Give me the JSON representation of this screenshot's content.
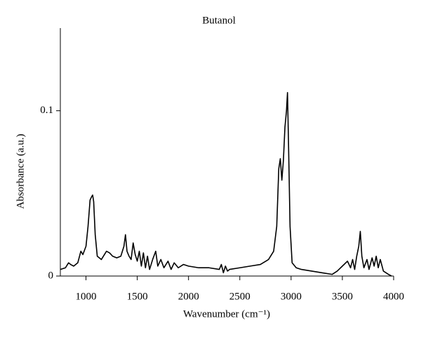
{
  "chart_data": {
    "type": "line",
    "title": "Butanol",
    "x_label": "Wavenumber (cm⁻¹)",
    "y_label": "Absorbance (a.u.)",
    "xlim": [
      750,
      4000
    ],
    "ylim": [
      0,
      0.15
    ],
    "xticks": [
      1000,
      1500,
      2000,
      2500,
      3000,
      3500,
      4000
    ],
    "yticks": [
      0,
      0.1
    ],
    "grid": false,
    "x": [
      750,
      800,
      830,
      850,
      880,
      920,
      950,
      970,
      1000,
      1020,
      1040,
      1055,
      1065,
      1075,
      1090,
      1110,
      1150,
      1200,
      1230,
      1260,
      1300,
      1340,
      1370,
      1385,
      1400,
      1420,
      1440,
      1460,
      1480,
      1500,
      1520,
      1540,
      1560,
      1580,
      1600,
      1620,
      1650,
      1680,
      1700,
      1730,
      1760,
      1800,
      1830,
      1860,
      1900,
      1950,
      2000,
      2100,
      2200,
      2300,
      2320,
      2340,
      2360,
      2380,
      2400,
      2500,
      2600,
      2700,
      2780,
      2830,
      2860,
      2880,
      2895,
      2910,
      2925,
      2940,
      2955,
      2965,
      2975,
      2990,
      3010,
      3050,
      3100,
      3200,
      3300,
      3400,
      3450,
      3500,
      3550,
      3580,
      3600,
      3620,
      3640,
      3660,
      3675,
      3690,
      3710,
      3740,
      3760,
      3790,
      3810,
      3830,
      3850,
      3870,
      3900,
      3950,
      3980
    ],
    "series": [
      {
        "color": "#000000",
        "values": [
          0.004,
          0.005,
          0.008,
          0.007,
          0.006,
          0.008,
          0.015,
          0.013,
          0.018,
          0.03,
          0.046,
          0.048,
          0.049,
          0.045,
          0.025,
          0.012,
          0.01,
          0.015,
          0.014,
          0.012,
          0.011,
          0.012,
          0.018,
          0.025,
          0.015,
          0.012,
          0.01,
          0.02,
          0.013,
          0.009,
          0.015,
          0.006,
          0.014,
          0.005,
          0.012,
          0.004,
          0.01,
          0.015,
          0.006,
          0.01,
          0.005,
          0.009,
          0.004,
          0.008,
          0.005,
          0.007,
          0.006,
          0.005,
          0.005,
          0.004,
          0.007,
          0.002,
          0.006,
          0.003,
          0.004,
          0.005,
          0.006,
          0.007,
          0.01,
          0.015,
          0.03,
          0.065,
          0.071,
          0.058,
          0.07,
          0.09,
          0.1,
          0.111,
          0.08,
          0.03,
          0.008,
          0.005,
          0.004,
          0.003,
          0.002,
          0.001,
          0.003,
          0.006,
          0.009,
          0.005,
          0.01,
          0.004,
          0.012,
          0.018,
          0.027,
          0.012,
          0.005,
          0.01,
          0.004,
          0.011,
          0.006,
          0.012,
          0.005,
          0.01,
          0.003,
          0.001,
          0.0
        ]
      }
    ]
  }
}
